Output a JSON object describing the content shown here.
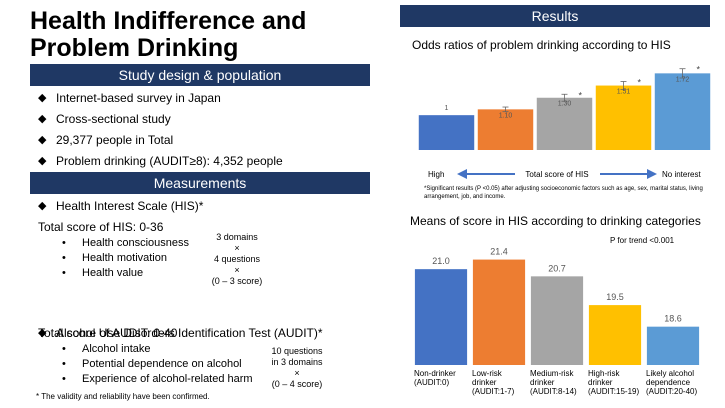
{
  "title": "Health Indifference and Problem Drinking",
  "study": {
    "heading": "Study design & population",
    "bullets": [
      "Internet-based survey in Japan",
      "Cross-sectional study",
      "29,377 people in Total",
      "Problem drinking (AUDIT≥8): 4,352 people"
    ]
  },
  "measurements": {
    "heading": "Measurements",
    "his": {
      "name": "Health Interest Scale (HIS)*",
      "range": "Total score of HIS: 0-36",
      "items": [
        "Health consciousness",
        "Health motivation",
        "Health value"
      ],
      "note": [
        "3 domains",
        "×",
        "4 questions",
        "×",
        "(0 – 3 score)"
      ]
    },
    "audit": {
      "name": "Alcohol Use Disorders Identification Test (AUDIT)*",
      "range": "Total score of AUDIT:  0-40",
      "items": [
        "Alcohol intake",
        "Potential dependence on alcohol",
        "Experience of alcohol-related harm"
      ],
      "note": [
        "10 questions",
        "in 3 domains",
        "×",
        "(0 – 4 score)"
      ]
    },
    "footnote": "* The validity and reliability have been confirmed."
  },
  "results": {
    "heading": "Results"
  },
  "chart_data": [
    {
      "type": "bar",
      "title": "Odds ratios of problem drinking according to HIS",
      "values": [
        1,
        1.1,
        1.3,
        1.51,
        1.72
      ],
      "value_labels": [
        "1",
        "1.10",
        "1.30",
        "1.51",
        "1.72"
      ],
      "errors": [
        null,
        0.04,
        0.06,
        0.07,
        0.08
      ],
      "significance": [
        null,
        null,
        "*",
        "*",
        "*"
      ],
      "colors": [
        "#4472c4",
        "#ed7d31",
        "#a5a5a5",
        "#ffc000",
        "#5b9bd5"
      ],
      "ylim": [
        0.4,
        1.95
      ],
      "x_labels": {
        "left": "High",
        "center": "Total score of HIS",
        "right": "No interest"
      },
      "footnote": "*Significant results (P <0.05) after adjusting socioeconomic factors such as age, sex, marital status, living arrangement, job, and income."
    },
    {
      "type": "bar",
      "title": "Means of score in HIS according to drinking categories",
      "annotation": "P for trend <0.001",
      "categories": [
        "Non-drinker (AUDIT:0)",
        "Low-risk drinker (AUDIT:1-7)",
        "Medium-risk drinker (AUDIT:8-14)",
        "High-risk drinker (AUDIT:15-19)",
        "Likely alcohol dependence (AUDIT:20-40)"
      ],
      "values": [
        21.0,
        21.4,
        20.7,
        19.5,
        18.6
      ],
      "value_labels": [
        "21.0",
        "21.4",
        "20.7",
        "19.5",
        "18.6"
      ],
      "colors": [
        "#4472c4",
        "#ed7d31",
        "#a5a5a5",
        "#ffc000",
        "#5b9bd5"
      ],
      "ylim": [
        17,
        21.8
      ]
    }
  ]
}
